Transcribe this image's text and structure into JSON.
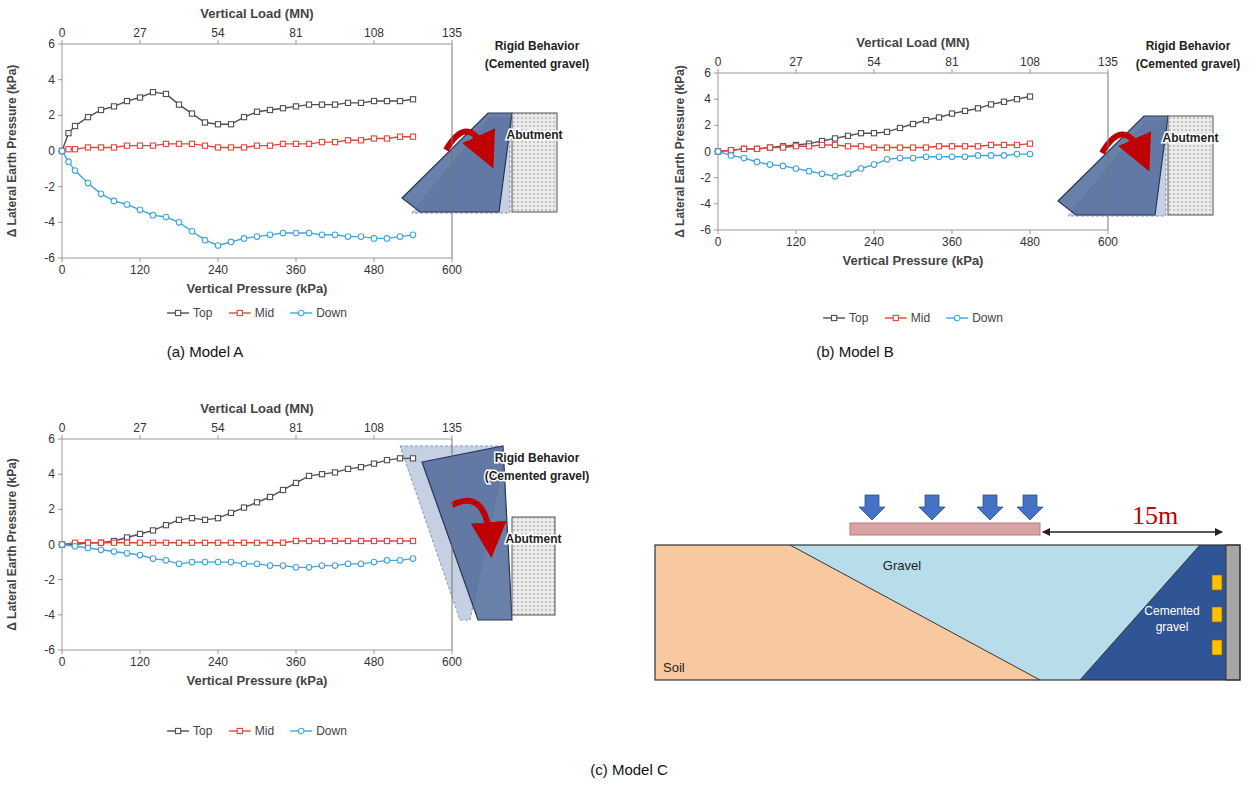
{
  "chart_data": [
    {
      "type": "line",
      "caption": "(a) Model A",
      "xlabel": "Vertical Pressure (kPa)",
      "x2label": "Vertical Load (MN)",
      "ylabel": "Δ Lateral Earth Pressure (kPa)",
      "x": [
        0,
        10,
        20,
        40,
        60,
        80,
        100,
        120,
        140,
        160,
        180,
        200,
        220,
        240,
        260,
        280,
        300,
        320,
        340,
        360,
        380,
        400,
        420,
        440,
        460,
        480,
        500,
        520,
        540
      ],
      "xlim": [
        0,
        600
      ],
      "xticks": [
        0,
        120,
        240,
        360,
        480,
        600
      ],
      "x2lim": [
        0,
        135
      ],
      "x2ticks": [
        0,
        27,
        54,
        81,
        108,
        135
      ],
      "ylim": [
        -6,
        6
      ],
      "yticks": [
        -6,
        -4,
        -2,
        0,
        2,
        4,
        6
      ],
      "grid": false,
      "legend": "bottom",
      "series": [
        {
          "name": "Top",
          "color": "#505050",
          "marker": "square",
          "line_style": "solid",
          "values": [
            0,
            1.0,
            1.4,
            1.9,
            2.3,
            2.5,
            2.8,
            3.0,
            3.3,
            3.2,
            2.6,
            2.1,
            1.6,
            1.5,
            1.5,
            1.9,
            2.2,
            2.3,
            2.4,
            2.5,
            2.6,
            2.6,
            2.6,
            2.7,
            2.7,
            2.8,
            2.8,
            2.8,
            2.9
          ]
        },
        {
          "name": "Mid",
          "color": "#e2463a",
          "marker": "square",
          "line_style": "solid",
          "values": [
            0,
            0.1,
            0.1,
            0.2,
            0.2,
            0.2,
            0.3,
            0.3,
            0.3,
            0.4,
            0.4,
            0.4,
            0.3,
            0.2,
            0.2,
            0.2,
            0.3,
            0.3,
            0.4,
            0.4,
            0.4,
            0.5,
            0.5,
            0.6,
            0.6,
            0.7,
            0.7,
            0.8,
            0.8
          ]
        },
        {
          "name": "Down",
          "color": "#41a6dd",
          "marker": "circle",
          "line_style": "solid",
          "values": [
            0,
            -0.6,
            -1.1,
            -1.8,
            -2.4,
            -2.8,
            -3.0,
            -3.3,
            -3.6,
            -3.7,
            -4.0,
            -4.5,
            -5.0,
            -5.3,
            -5.1,
            -4.9,
            -4.8,
            -4.7,
            -4.6,
            -4.6,
            -4.6,
            -4.7,
            -4.7,
            -4.8,
            -4.8,
            -4.9,
            -4.9,
            -4.8,
            -4.7
          ]
        }
      ],
      "inset": {
        "title": "Rigid Behavior",
        "subtitle": "(Cemented gravel)",
        "label": "Abutment"
      }
    },
    {
      "type": "line",
      "caption": "(b) Model B",
      "xlabel": "Vertical Pressure (kPa)",
      "x2label": "Vertical Load (MN)",
      "ylabel": "Δ Lateral Earth Pressure (kPa)",
      "x": [
        0,
        20,
        40,
        60,
        80,
        100,
        120,
        140,
        160,
        180,
        200,
        220,
        240,
        260,
        280,
        300,
        320,
        340,
        360,
        380,
        400,
        420,
        440,
        460,
        480
      ],
      "xlim": [
        0,
        600
      ],
      "xticks": [
        0,
        120,
        240,
        360,
        480,
        600
      ],
      "x2lim": [
        0,
        135
      ],
      "x2ticks": [
        0,
        27,
        54,
        81,
        108,
        135
      ],
      "ylim": [
        -6,
        6
      ],
      "yticks": [
        -6,
        -4,
        -2,
        0,
        2,
        4,
        6
      ],
      "grid": false,
      "legend": "bottom",
      "series": [
        {
          "name": "Top",
          "color": "#505050",
          "marker": "square",
          "line_style": "solid",
          "values": [
            0,
            0.1,
            0.2,
            0.2,
            0.3,
            0.4,
            0.5,
            0.6,
            0.8,
            1.0,
            1.2,
            1.4,
            1.4,
            1.5,
            1.8,
            2.1,
            2.4,
            2.6,
            2.9,
            3.1,
            3.3,
            3.6,
            3.8,
            4.0,
            4.2
          ]
        },
        {
          "name": "Mid",
          "color": "#e2463a",
          "marker": "square",
          "line_style": "solid",
          "values": [
            0,
            0.1,
            0.2,
            0.2,
            0.3,
            0.3,
            0.4,
            0.4,
            0.5,
            0.5,
            0.4,
            0.4,
            0.3,
            0.3,
            0.3,
            0.3,
            0.3,
            0.4,
            0.4,
            0.4,
            0.4,
            0.5,
            0.5,
            0.5,
            0.6
          ]
        },
        {
          "name": "Down",
          "color": "#41a6dd",
          "marker": "circle",
          "line_style": "solid",
          "values": [
            0,
            -0.3,
            -0.5,
            -0.8,
            -1.0,
            -1.1,
            -1.3,
            -1.5,
            -1.7,
            -1.9,
            -1.7,
            -1.3,
            -1.0,
            -0.6,
            -0.5,
            -0.5,
            -0.4,
            -0.4,
            -0.4,
            -0.4,
            -0.3,
            -0.3,
            -0.3,
            -0.2,
            -0.2
          ]
        }
      ],
      "inset": {
        "title": "Rigid Behavior",
        "subtitle": "(Cemented gravel)",
        "label": "Abutment"
      }
    },
    {
      "type": "line",
      "caption": "(c) Model C",
      "xlabel": "Vertical Pressure (kPa)",
      "x2label": "Vertical Load (MN)",
      "ylabel": "Δ Lateral Earth Pressure (kPa)",
      "x": [
        0,
        20,
        40,
        60,
        80,
        100,
        120,
        140,
        160,
        180,
        200,
        220,
        240,
        260,
        280,
        300,
        320,
        340,
        360,
        380,
        400,
        420,
        440,
        460,
        480,
        500,
        520,
        540
      ],
      "xlim": [
        0,
        600
      ],
      "xticks": [
        0,
        120,
        240,
        360,
        480,
        600
      ],
      "x2lim": [
        0,
        135
      ],
      "x2ticks": [
        0,
        27,
        54,
        81,
        108,
        135
      ],
      "ylim": [
        -6,
        6
      ],
      "yticks": [
        -6,
        -4,
        -2,
        0,
        2,
        4,
        6
      ],
      "grid": false,
      "legend": "bottom",
      "series": [
        {
          "name": "Top",
          "color": "#505050",
          "marker": "square",
          "line_style": "solid",
          "values": [
            0,
            0,
            0.1,
            0.1,
            0.2,
            0.4,
            0.6,
            0.8,
            1.1,
            1.4,
            1.5,
            1.4,
            1.5,
            1.8,
            2.1,
            2.4,
            2.7,
            3.1,
            3.5,
            3.9,
            4.0,
            4.1,
            4.3,
            4.4,
            4.6,
            4.8,
            4.9,
            4.9
          ]
        },
        {
          "name": "Mid",
          "color": "#e2463a",
          "marker": "square",
          "line_style": "solid",
          "values": [
            0,
            0.1,
            0.1,
            0.1,
            0.1,
            0.1,
            0.1,
            0.1,
            0.1,
            0.1,
            0.1,
            0.1,
            0.1,
            0.1,
            0.1,
            0.1,
            0.1,
            0.1,
            0.2,
            0.2,
            0.2,
            0.2,
            0.2,
            0.2,
            0.2,
            0.2,
            0.2,
            0.2
          ]
        },
        {
          "name": "Down",
          "color": "#41a6dd",
          "marker": "circle",
          "line_style": "solid",
          "values": [
            0,
            -0.1,
            -0.2,
            -0.3,
            -0.4,
            -0.5,
            -0.6,
            -0.8,
            -0.9,
            -1.1,
            -1.0,
            -1.0,
            -1.0,
            -1.0,
            -1.1,
            -1.1,
            -1.2,
            -1.2,
            -1.3,
            -1.3,
            -1.2,
            -1.2,
            -1.1,
            -1.1,
            -1.0,
            -0.9,
            -0.9,
            -0.8
          ]
        }
      ],
      "inset": {
        "title": "Rigid Behavior",
        "subtitle": "(Cemented gravel)",
        "label": "Abutment"
      }
    }
  ],
  "diagram": {
    "distance": "15m",
    "labels": {
      "soil": "Soil",
      "gravel": "Gravel",
      "cemented": "Cemented gravel"
    }
  }
}
